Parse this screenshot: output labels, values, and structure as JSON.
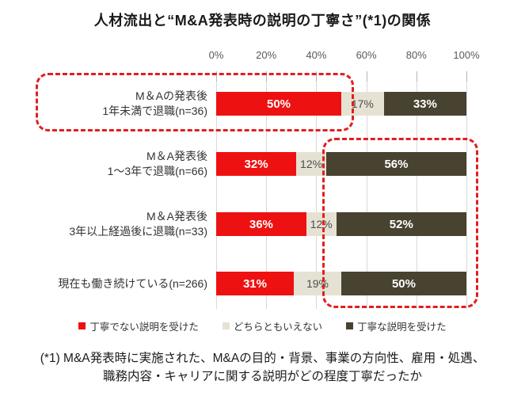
{
  "title": "人材流出と“M&A発表時の説明の丁寧さ”(*1)の関係",
  "chart_data": {
    "type": "bar",
    "orientation": "horizontal",
    "stacked": true,
    "unit": "%",
    "xlim": [
      0,
      100
    ],
    "grid": true,
    "legend_position": "bottom",
    "x_ticks": [
      {
        "value": 0,
        "label": "0%"
      },
      {
        "value": 20,
        "label": "20%"
      },
      {
        "value": 40,
        "label": "40%"
      },
      {
        "value": 60,
        "label": "60%"
      },
      {
        "value": 80,
        "label": "80%"
      },
      {
        "value": 100,
        "label": "100%"
      }
    ],
    "series": [
      {
        "name": "丁寧でない説明を受けた",
        "color": "#ee1111",
        "text_color": "#ffffff"
      },
      {
        "name": "どちらともいえない",
        "color": "#e6e2d3",
        "text_color": "#4d4d4d"
      },
      {
        "name": "丁寧な説明を受けた",
        "color": "#484231",
        "text_color": "#ffffff"
      }
    ],
    "rows": [
      {
        "label_lines": [
          "M＆Aの発表後",
          "1年未満で退職(n=36)"
        ],
        "values": [
          50,
          17,
          33
        ]
      },
      {
        "label_lines": [
          "M＆A発表後",
          "1～3年で退職(n=66)"
        ],
        "values": [
          32,
          12,
          56
        ]
      },
      {
        "label_lines": [
          "M＆A発表後",
          "3年以上経過後に退職(n=33)"
        ],
        "values": [
          36,
          12,
          52
        ]
      },
      {
        "label_lines": [
          "現在も働き続けている(n=266)"
        ],
        "values": [
          31,
          19,
          50
        ]
      }
    ],
    "annotations": {
      "highlight_box_1": "M&Aの発表後1年未満で退職した層の「丁寧でない説明を受けた」50%を強調",
      "highlight_box_2": "退職が遅い層・継続層の「丁寧な説明を受けた」56%・52%・50%を強調"
    }
  },
  "legend": {
    "entries": [
      "丁寧でない説明を受けた",
      "どちらともいえない",
      "丁寧な説明を受けた"
    ]
  },
  "footnote": {
    "line1": "(*1) M&A発表時に実施された、M&Aの目的・背景、事業の方向性、雇用・処遇、",
    "line2": "職務内容・キャリアに関する説明がどの程度丁寧だったか"
  },
  "colors": {
    "not_polite_red": "#ee1111",
    "neutral_beige": "#e6e2d3",
    "polite_dark_olive": "#484231",
    "highlight_dashed_red": "#e01f1f",
    "gridline_gray": "#d9d9d9",
    "axis_text_gray": "#595959"
  }
}
